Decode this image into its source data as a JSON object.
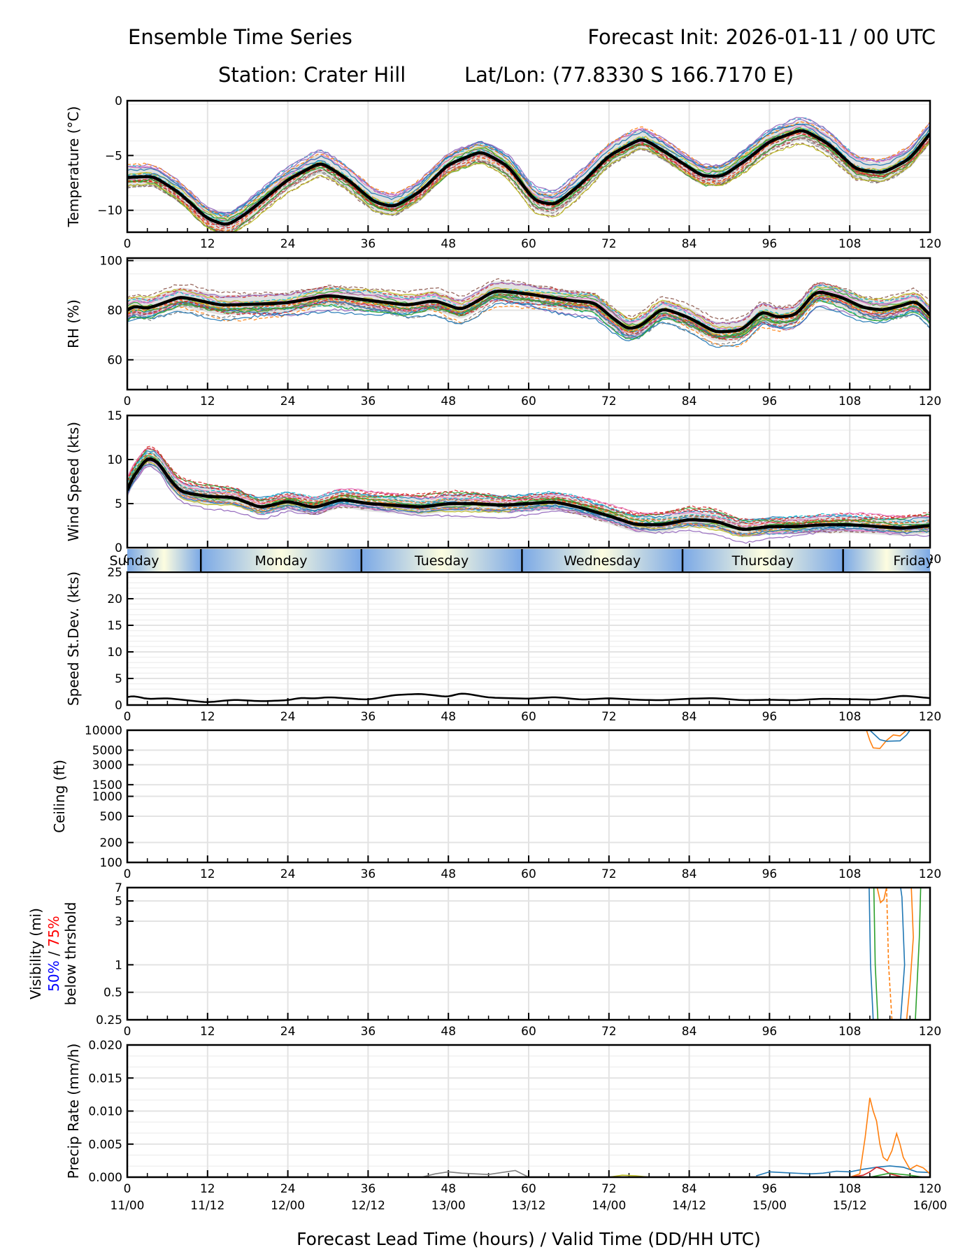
{
  "header": {
    "title": "Ensemble Time Series",
    "init": "Forecast Init: 2026-01-11 / 00 UTC",
    "station": "Station: Crater Hill",
    "latlon": "Lat/Lon: (77.8330 S 166.7170 E)"
  },
  "colors": {
    "mean": "#000000",
    "spread": "#d9d9d9",
    "members": [
      "#1f77b4",
      "#ff7f0e",
      "#2ca02c",
      "#d62728",
      "#9467bd",
      "#8c564b",
      "#e377c2",
      "#7f7f7f",
      "#bcbd22",
      "#17becf"
    ],
    "vis50": "#0000ff",
    "vis75": "#ff0000",
    "day_light": "#fdfde0",
    "day_dark": "#7aa8e6"
  },
  "xaxis": {
    "range": [
      0,
      120
    ],
    "ticks": [
      0,
      12,
      24,
      36,
      48,
      60,
      72,
      84,
      96,
      108,
      120
    ],
    "tick_labels": [
      "0",
      "12",
      "24",
      "36",
      "48",
      "60",
      "72",
      "84",
      "96",
      "108",
      "120"
    ],
    "valid_labels": [
      "11/00",
      "11/12",
      "12/00",
      "12/12",
      "13/00",
      "13/12",
      "14/00",
      "14/12",
      "15/00",
      "15/12",
      "16/00"
    ],
    "label": "Forecast Lead Time (hours) / Valid Time (DD/HH UTC)"
  },
  "day_band": {
    "days": [
      {
        "label": "Sunday",
        "start": 0,
        "end": 11
      },
      {
        "label": "Monday",
        "start": 11,
        "end": 35
      },
      {
        "label": "Tuesday",
        "start": 35,
        "end": 59
      },
      {
        "label": "Wednesday",
        "start": 59,
        "end": 83
      },
      {
        "label": "Thursday",
        "start": 83,
        "end": 107
      },
      {
        "label": "Friday",
        "start": 107,
        "end": 120
      }
    ]
  },
  "chart_data": [
    {
      "type": "line",
      "id": "temperature",
      "ylabel": "Temperature (°C)",
      "ylim": [
        -12,
        0
      ],
      "yticks": [
        0,
        -5,
        -10
      ],
      "ytick_labels": [
        "0",
        "−5",
        "−10"
      ],
      "grid": true,
      "mean": {
        "x": [
          0,
          4,
          8,
          12,
          15,
          18,
          24,
          29,
          33,
          37,
          40,
          44,
          48,
          53,
          57,
          61,
          64,
          68,
          72,
          77,
          81,
          86,
          89,
          93,
          96,
          101,
          105,
          109,
          113,
          117,
          120
        ],
        "y": [
          -7,
          -6.9,
          -8.5,
          -10.8,
          -11.4,
          -10.2,
          -7.2,
          -5.6,
          -7.2,
          -9.3,
          -9.7,
          -8.2,
          -5.8,
          -4.6,
          -6,
          -9.2,
          -9.5,
          -7.5,
          -5,
          -3.4,
          -4.9,
          -6.9,
          -6.9,
          -5.2,
          -3.7,
          -2.6,
          -4,
          -6.3,
          -6.6,
          -5.3,
          -3
        ]
      },
      "spread": 0.9
    },
    {
      "type": "line",
      "id": "rh",
      "ylabel": "RH (%)",
      "ylim": [
        48,
        101
      ],
      "yticks": [
        100,
        80,
        60
      ],
      "ytick_labels": [
        "100",
        "80",
        "60"
      ],
      "grid": true,
      "mean": {
        "x": [
          0,
          1,
          3,
          8,
          14,
          20,
          24,
          30,
          36,
          42,
          46,
          50,
          55,
          60,
          66,
          70,
          72,
          75,
          77,
          80,
          84,
          88,
          92,
          95,
          97,
          100,
          103,
          107,
          110,
          113,
          116,
          118,
          120
        ],
        "y": [
          80,
          82,
          80.5,
          85.5,
          82,
          82.5,
          83,
          86,
          84,
          82,
          84,
          80,
          88,
          86.5,
          84,
          83,
          78,
          72,
          74,
          81,
          77,
          71,
          72,
          80,
          77,
          78,
          88,
          85,
          81,
          80,
          82,
          84,
          78
        ]
      },
      "spread": 4
    },
    {
      "type": "line",
      "id": "wind_speed",
      "ylabel": "Wind Speed (kts)",
      "ylim": [
        0,
        15
      ],
      "yticks": [
        0,
        5,
        10,
        15
      ],
      "ytick_labels": [
        "0",
        "5",
        "10",
        "15"
      ],
      "grid": true,
      "mean": {
        "x": [
          0,
          1,
          2,
          3,
          4,
          5,
          6,
          8,
          12,
          16,
          20,
          24,
          28,
          32,
          36,
          40,
          44,
          48,
          52,
          56,
          60,
          64,
          68,
          72,
          76,
          80,
          84,
          88,
          92,
          96,
          100,
          104,
          108,
          112,
          116,
          120
        ],
        "y": [
          6.5,
          8.5,
          9,
          10.5,
          10,
          9.5,
          8,
          6.3,
          5.8,
          5.7,
          4.5,
          5.3,
          4.5,
          5.5,
          5,
          4.8,
          4.6,
          5,
          5,
          4.8,
          5,
          5.2,
          4.5,
          3.6,
          2.6,
          2.6,
          3.2,
          3,
          2,
          2.4,
          2.4,
          2.6,
          2.6,
          2.4,
          2.2,
          2.5
        ]
      },
      "spread": 0.9
    },
    {
      "type": "line",
      "id": "speed_stdev",
      "ylabel": "Speed St.Dev. (kts)",
      "ylim": [
        0,
        25
      ],
      "yticks": [
        0,
        5,
        10,
        15,
        20,
        25
      ],
      "ytick_labels": [
        "0",
        "5",
        "10",
        "15",
        "20",
        "25"
      ],
      "grid": true,
      "mean": {
        "x": [
          0,
          1,
          3,
          6,
          9,
          12,
          16,
          20,
          24,
          26,
          28,
          30,
          36,
          40,
          44,
          48,
          50,
          54,
          60,
          64,
          68,
          72,
          76,
          80,
          84,
          88,
          92,
          96,
          100,
          104,
          108,
          112,
          116,
          120
        ],
        "y": [
          1.5,
          1.8,
          1.1,
          1.3,
          0.9,
          0.5,
          1,
          0.7,
          0.9,
          1.4,
          1.2,
          1.5,
          1.0,
          1.9,
          2.1,
          1.5,
          2.3,
          1.4,
          1.2,
          1.5,
          1.0,
          1.3,
          1.0,
          0.9,
          1.2,
          1.3,
          0.9,
          1.0,
          0.9,
          1.2,
          1.1,
          1.0,
          1.8,
          1.3
        ]
      }
    },
    {
      "type": "line",
      "id": "ceiling",
      "ylabel": "Ceiling (ft)",
      "yscale": "log",
      "ylim": [
        100,
        10000
      ],
      "yticks": [
        10000,
        5000,
        3000,
        1500,
        1000,
        500,
        200,
        100
      ],
      "ytick_labels": [
        "10000",
        "5000",
        "3000",
        "1500",
        "1000",
        "500",
        "200",
        "100"
      ],
      "grid": true,
      "members": [
        {
          "color_index": 1,
          "x": [
            110.5,
            111,
            111.5,
            112.5,
            113.5,
            114.5,
            115.5,
            116.5
          ],
          "y": [
            10000,
            7000,
            5400,
            5300,
            7000,
            8500,
            8200,
            10000
          ]
        },
        {
          "color_index": 0,
          "x": [
            111,
            112.5,
            113.5,
            115.5,
            116.5,
            117
          ],
          "y": [
            10000,
            7200,
            6800,
            6900,
            8500,
            10000
          ]
        }
      ]
    },
    {
      "type": "line",
      "id": "visibility",
      "ylabel": "Visibility (mi)",
      "ylabel_50": "50%",
      "ylabel_slash": " / ",
      "ylabel_75": "75%",
      "ylabel_sub": "below thrshold",
      "yscale": "log",
      "ylim": [
        0.25,
        7
      ],
      "yticks": [
        7,
        5,
        3,
        1,
        0.5,
        0.25
      ],
      "ytick_labels": [
        "7",
        "5",
        "3",
        "1",
        "0.5",
        "0.25"
      ],
      "grid": true,
      "members": [
        {
          "color_index": 0,
          "dash": false,
          "x": [
            110.9,
            111.1,
            111.5
          ],
          "y": [
            7,
            1,
            0.25
          ]
        },
        {
          "color_index": 2,
          "dash": false,
          "x": [
            111.6,
            111.8,
            112.2
          ],
          "y": [
            7,
            1,
            0.25
          ]
        },
        {
          "color_index": 1,
          "dash": false,
          "x": [
            112.1,
            112.6,
            113.1,
            113.5
          ],
          "y": [
            7,
            4.8,
            5.2,
            7
          ]
        },
        {
          "color_index": 1,
          "dash": true,
          "x": [
            113.5,
            113.8,
            114.3
          ],
          "y": [
            7,
            1,
            0.25
          ]
        },
        {
          "color_index": 0,
          "dash": false,
          "x": [
            115.6,
            115.8,
            116.2,
            115.6
          ],
          "y": [
            7,
            5.5,
            1,
            0.25
          ]
        },
        {
          "color_index": 1,
          "dash": false,
          "x": [
            117.2,
            117.5,
            117.0,
            116.5
          ],
          "y": [
            7,
            2,
            0.6,
            0.25
          ]
        },
        {
          "color_index": 2,
          "dash": false,
          "x": [
            118.6,
            118.4,
            117.8
          ],
          "y": [
            7,
            2,
            0.25
          ]
        }
      ]
    },
    {
      "type": "line",
      "id": "precip_rate",
      "ylabel": "Precip Rate (mm/h)",
      "ylim": [
        0,
        0.02
      ],
      "yticks": [
        0.02,
        0.015,
        0.01,
        0.005,
        0
      ],
      "ytick_labels": [
        "0.020",
        "0.015",
        "0.010",
        "0.005",
        "0.000"
      ],
      "grid": true,
      "members": [
        {
          "color_index": 0,
          "x": [
            94,
            96,
            98,
            102,
            104,
            106,
            108,
            110,
            112,
            114,
            116,
            118,
            120
          ],
          "y": [
            0.0002,
            0.0008,
            0.0007,
            0.0005,
            0.0006,
            0.0009,
            0.0008,
            0.0012,
            0.0015,
            0.0017,
            0.0015,
            0.0008,
            0.0007
          ]
        },
        {
          "color_index": 1,
          "x": [
            108,
            109.5,
            110.3,
            111,
            111.5,
            112,
            112.5,
            113,
            113.6,
            114.3,
            115,
            115.5,
            116,
            117,
            118,
            119,
            120
          ],
          "y": [
            0,
            0.0005,
            0.006,
            0.012,
            0.01,
            0.0085,
            0.005,
            0.003,
            0.0025,
            0.004,
            0.0066,
            0.005,
            0.003,
            0.0012,
            0.0018,
            0.0014,
            0.0005
          ]
        },
        {
          "color_index": 3,
          "x": [
            108,
            110,
            111,
            112,
            113,
            114,
            116
          ],
          "y": [
            0,
            0.0003,
            0.0008,
            0.0015,
            0.0012,
            0.0005,
            0
          ]
        },
        {
          "color_index": 2,
          "x": [
            111,
            113,
            114,
            115,
            117,
            119
          ],
          "y": [
            0,
            0.0004,
            0.0006,
            0.0005,
            0.0003,
            0
          ]
        },
        {
          "color_index": 7,
          "x": [
            44,
            46,
            48,
            50,
            54,
            58,
            60
          ],
          "y": [
            0,
            0.0005,
            0.0008,
            0.0006,
            0.0004,
            0.001,
            0
          ]
        },
        {
          "color_index": 8,
          "x": [
            72,
            74,
            76,
            78
          ],
          "y": [
            0,
            0.0003,
            0.0002,
            0
          ]
        }
      ]
    }
  ]
}
